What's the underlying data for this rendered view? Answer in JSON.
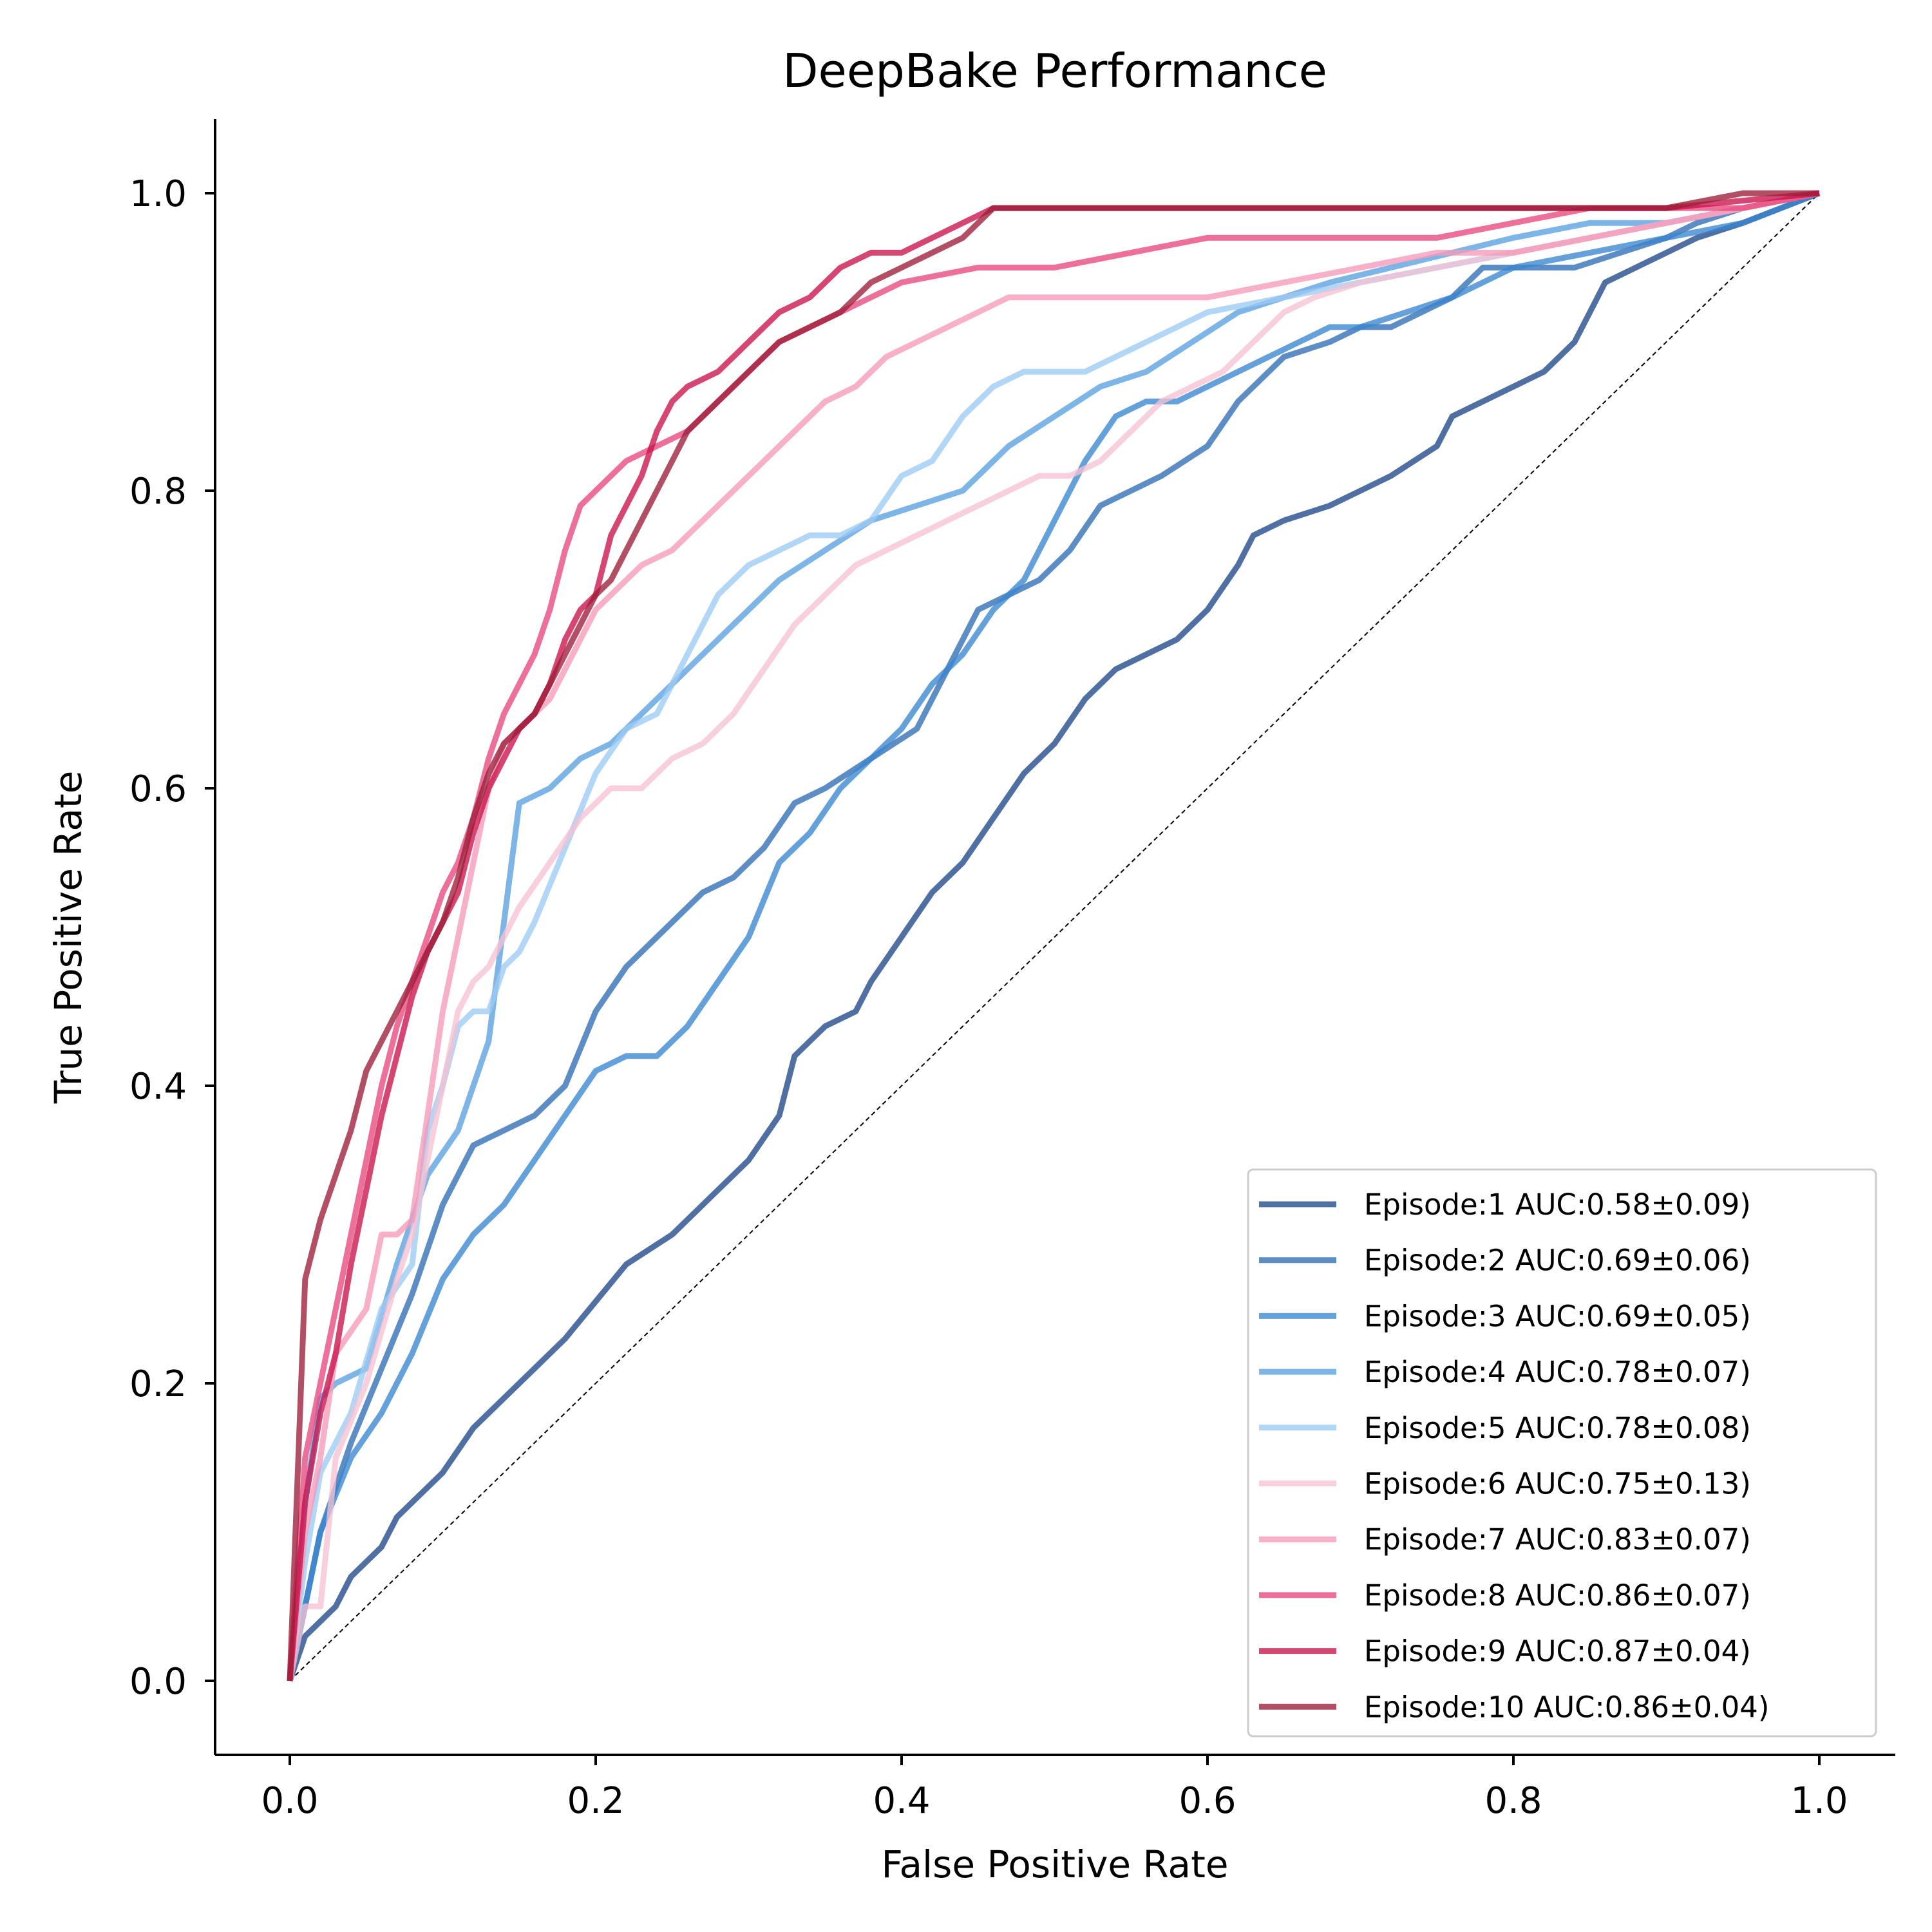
{
  "chart_data": {
    "type": "line",
    "title": "DeepBake Performance",
    "xlabel": "False Positive Rate",
    "ylabel": "True Positive Rate",
    "xlim": [
      -0.05,
      1.05
    ],
    "ylim": [
      -0.05,
      1.05
    ],
    "xticks": [
      "0.0",
      "0.2",
      "0.4",
      "0.6",
      "0.8",
      "1.0"
    ],
    "yticks": [
      "0.0",
      "0.2",
      "0.4",
      "0.6",
      "0.8",
      "1.0"
    ],
    "grid": false,
    "legend_position": "lower-right",
    "reference_line": {
      "x": [
        0,
        1
      ],
      "y": [
        0,
        1
      ],
      "style": "dashed",
      "color": "#000000"
    },
    "series": [
      {
        "name": "Episode:1 AUC:0.58±0.09)",
        "color": "#1f4788",
        "x": [
          0,
          0.01,
          0.02,
          0.03,
          0.04,
          0.05,
          0.06,
          0.07,
          0.08,
          0.09,
          0.1,
          0.12,
          0.15,
          0.18,
          0.22,
          0.25,
          0.28,
          0.3,
          0.32,
          0.33,
          0.35,
          0.37,
          0.38,
          0.4,
          0.42,
          0.44,
          0.46,
          0.48,
          0.5,
          0.52,
          0.54,
          0.56,
          0.58,
          0.6,
          0.62,
          0.63,
          0.65,
          0.68,
          0.7,
          0.72,
          0.75,
          0.76,
          0.78,
          0.8,
          0.82,
          0.83,
          0.84,
          0.85,
          0.86,
          0.88,
          0.9,
          0.92,
          0.95,
          1.0
        ],
        "y": [
          0,
          0.03,
          0.04,
          0.05,
          0.07,
          0.08,
          0.09,
          0.11,
          0.12,
          0.13,
          0.14,
          0.17,
          0.2,
          0.23,
          0.28,
          0.3,
          0.33,
          0.35,
          0.38,
          0.42,
          0.44,
          0.45,
          0.47,
          0.5,
          0.53,
          0.55,
          0.58,
          0.61,
          0.63,
          0.66,
          0.68,
          0.69,
          0.7,
          0.72,
          0.75,
          0.77,
          0.78,
          0.79,
          0.8,
          0.81,
          0.83,
          0.85,
          0.86,
          0.87,
          0.88,
          0.89,
          0.9,
          0.92,
          0.94,
          0.95,
          0.96,
          0.97,
          0.98,
          1.0
        ]
      },
      {
        "name": "Episode:2 AUC:0.69±0.06)",
        "color": "#2f6db5",
        "x": [
          0,
          0.02,
          0.04,
          0.06,
          0.08,
          0.1,
          0.12,
          0.14,
          0.16,
          0.18,
          0.2,
          0.22,
          0.25,
          0.27,
          0.29,
          0.31,
          0.33,
          0.35,
          0.38,
          0.41,
          0.43,
          0.45,
          0.47,
          0.49,
          0.51,
          0.53,
          0.55,
          0.57,
          0.6,
          0.62,
          0.63,
          0.65,
          0.68,
          0.7,
          0.72,
          0.74,
          0.76,
          0.78,
          0.82,
          0.84,
          0.87,
          0.9,
          0.92,
          0.95,
          1.0
        ],
        "y": [
          0,
          0.1,
          0.16,
          0.21,
          0.26,
          0.32,
          0.36,
          0.37,
          0.38,
          0.4,
          0.45,
          0.48,
          0.51,
          0.53,
          0.54,
          0.56,
          0.59,
          0.6,
          0.62,
          0.64,
          0.68,
          0.72,
          0.73,
          0.74,
          0.76,
          0.79,
          0.8,
          0.81,
          0.83,
          0.86,
          0.87,
          0.89,
          0.9,
          0.91,
          0.91,
          0.92,
          0.93,
          0.95,
          0.95,
          0.95,
          0.96,
          0.97,
          0.98,
          0.99,
          1.0
        ]
      },
      {
        "name": "Episode:3 AUC:0.69±0.05)",
        "color": "#3985cf",
        "x": [
          0,
          0.02,
          0.04,
          0.06,
          0.08,
          0.1,
          0.12,
          0.14,
          0.16,
          0.18,
          0.2,
          0.22,
          0.24,
          0.26,
          0.28,
          0.3,
          0.32,
          0.34,
          0.36,
          0.38,
          0.4,
          0.42,
          0.44,
          0.46,
          0.48,
          0.5,
          0.52,
          0.54,
          0.56,
          0.58,
          0.6,
          0.62,
          0.64,
          0.66,
          0.68,
          0.7,
          0.73,
          0.76,
          0.8,
          0.85,
          0.9,
          0.95,
          1.0
        ],
        "y": [
          0,
          0.1,
          0.15,
          0.18,
          0.22,
          0.27,
          0.3,
          0.32,
          0.35,
          0.38,
          0.41,
          0.42,
          0.42,
          0.44,
          0.47,
          0.5,
          0.55,
          0.57,
          0.6,
          0.62,
          0.64,
          0.67,
          0.69,
          0.72,
          0.74,
          0.78,
          0.82,
          0.85,
          0.86,
          0.86,
          0.87,
          0.88,
          0.89,
          0.9,
          0.91,
          0.91,
          0.92,
          0.93,
          0.95,
          0.96,
          0.97,
          0.98,
          1.0
        ]
      },
      {
        "name": "Episode:4 AUC:0.78±0.07)",
        "color": "#5aa0e0",
        "x": [
          0,
          0.01,
          0.02,
          0.03,
          0.05,
          0.07,
          0.09,
          0.11,
          0.13,
          0.15,
          0.17,
          0.19,
          0.21,
          0.23,
          0.26,
          0.29,
          0.32,
          0.35,
          0.38,
          0.41,
          0.44,
          0.47,
          0.5,
          0.53,
          0.56,
          0.59,
          0.62,
          0.65,
          0.68,
          0.72,
          0.76,
          0.8,
          0.85,
          0.9,
          0.95,
          1.0
        ],
        "y": [
          0,
          0.12,
          0.19,
          0.2,
          0.21,
          0.28,
          0.34,
          0.37,
          0.43,
          0.59,
          0.6,
          0.62,
          0.63,
          0.65,
          0.68,
          0.71,
          0.74,
          0.76,
          0.78,
          0.79,
          0.8,
          0.83,
          0.85,
          0.87,
          0.88,
          0.9,
          0.92,
          0.93,
          0.94,
          0.95,
          0.96,
          0.97,
          0.98,
          0.98,
          0.99,
          1.0
        ]
      },
      {
        "name": "Episode:5 AUC:0.78±0.08)",
        "color": "#9ccaf2",
        "x": [
          0,
          0.01,
          0.02,
          0.04,
          0.06,
          0.08,
          0.09,
          0.1,
          0.11,
          0.12,
          0.13,
          0.14,
          0.15,
          0.16,
          0.18,
          0.2,
          0.22,
          0.24,
          0.26,
          0.28,
          0.3,
          0.32,
          0.34,
          0.36,
          0.38,
          0.4,
          0.42,
          0.44,
          0.46,
          0.48,
          0.5,
          0.52,
          0.54,
          0.56,
          0.6,
          0.65,
          0.7,
          0.75,
          0.8,
          0.85,
          0.9,
          0.95,
          1.0
        ],
        "y": [
          0,
          0.08,
          0.14,
          0.18,
          0.25,
          0.28,
          0.37,
          0.4,
          0.44,
          0.45,
          0.45,
          0.48,
          0.49,
          0.51,
          0.56,
          0.61,
          0.64,
          0.65,
          0.69,
          0.73,
          0.75,
          0.76,
          0.77,
          0.77,
          0.78,
          0.81,
          0.82,
          0.85,
          0.87,
          0.88,
          0.88,
          0.88,
          0.89,
          0.9,
          0.92,
          0.93,
          0.94,
          0.95,
          0.96,
          0.97,
          0.98,
          0.99,
          1.0
        ]
      },
      {
        "name": "Episode:6 AUC:0.75±0.13)",
        "color": "#f5c2d3",
        "x": [
          0,
          0.01,
          0.02,
          0.03,
          0.05,
          0.07,
          0.08,
          0.09,
          0.1,
          0.11,
          0.12,
          0.13,
          0.14,
          0.15,
          0.17,
          0.19,
          0.21,
          0.23,
          0.25,
          0.27,
          0.29,
          0.31,
          0.33,
          0.35,
          0.37,
          0.39,
          0.41,
          0.43,
          0.45,
          0.47,
          0.49,
          0.51,
          0.53,
          0.55,
          0.57,
          0.59,
          0.61,
          0.63,
          0.65,
          0.67,
          0.7,
          0.75,
          0.8,
          0.85,
          0.9,
          0.95,
          1.0
        ],
        "y": [
          0,
          0.05,
          0.05,
          0.15,
          0.2,
          0.27,
          0.3,
          0.35,
          0.4,
          0.45,
          0.47,
          0.48,
          0.5,
          0.52,
          0.55,
          0.58,
          0.6,
          0.6,
          0.62,
          0.63,
          0.65,
          0.68,
          0.71,
          0.73,
          0.75,
          0.76,
          0.77,
          0.78,
          0.79,
          0.8,
          0.81,
          0.81,
          0.82,
          0.84,
          0.86,
          0.87,
          0.88,
          0.9,
          0.92,
          0.93,
          0.94,
          0.95,
          0.96,
          0.97,
          0.98,
          0.99,
          1.0
        ]
      },
      {
        "name": "Episode:7 AUC:0.83±0.07)",
        "color": "#f59ab8",
        "x": [
          0,
          0.01,
          0.02,
          0.03,
          0.05,
          0.06,
          0.07,
          0.08,
          0.09,
          0.1,
          0.11,
          0.12,
          0.13,
          0.14,
          0.15,
          0.16,
          0.17,
          0.18,
          0.19,
          0.2,
          0.21,
          0.22,
          0.23,
          0.25,
          0.27,
          0.29,
          0.31,
          0.33,
          0.35,
          0.37,
          0.39,
          0.41,
          0.43,
          0.45,
          0.47,
          0.5,
          0.55,
          0.6,
          0.65,
          0.7,
          0.75,
          0.8,
          0.85,
          0.9,
          0.95,
          1.0
        ],
        "y": [
          0,
          0.1,
          0.15,
          0.22,
          0.25,
          0.3,
          0.3,
          0.31,
          0.38,
          0.45,
          0.5,
          0.55,
          0.6,
          0.63,
          0.64,
          0.65,
          0.66,
          0.68,
          0.7,
          0.72,
          0.73,
          0.74,
          0.75,
          0.76,
          0.78,
          0.8,
          0.82,
          0.84,
          0.86,
          0.87,
          0.89,
          0.9,
          0.91,
          0.92,
          0.93,
          0.93,
          0.93,
          0.93,
          0.94,
          0.95,
          0.96,
          0.96,
          0.97,
          0.98,
          0.99,
          1.0
        ]
      },
      {
        "name": "Episode:8 AUC:0.86±0.07)",
        "color": "#e8487e",
        "x": [
          0,
          0.01,
          0.02,
          0.03,
          0.04,
          0.05,
          0.06,
          0.07,
          0.08,
          0.09,
          0.1,
          0.11,
          0.12,
          0.13,
          0.14,
          0.15,
          0.16,
          0.17,
          0.18,
          0.19,
          0.2,
          0.22,
          0.24,
          0.26,
          0.28,
          0.3,
          0.32,
          0.34,
          0.36,
          0.38,
          0.4,
          0.45,
          0.5,
          0.55,
          0.6,
          0.65,
          0.7,
          0.75,
          0.8,
          0.85,
          0.9,
          0.95,
          1.0
        ],
        "y": [
          0,
          0.15,
          0.2,
          0.25,
          0.3,
          0.35,
          0.4,
          0.44,
          0.47,
          0.5,
          0.53,
          0.55,
          0.58,
          0.62,
          0.65,
          0.67,
          0.69,
          0.72,
          0.76,
          0.79,
          0.8,
          0.82,
          0.83,
          0.84,
          0.86,
          0.88,
          0.9,
          0.91,
          0.92,
          0.93,
          0.94,
          0.95,
          0.95,
          0.96,
          0.97,
          0.97,
          0.97,
          0.97,
          0.98,
          0.99,
          0.99,
          0.99,
          1.0
        ]
      },
      {
        "name": "Episode:9 AUC:0.87±0.04)",
        "color": "#c9124a",
        "x": [
          0,
          0.01,
          0.02,
          0.03,
          0.04,
          0.05,
          0.06,
          0.07,
          0.08,
          0.09,
          0.1,
          0.11,
          0.12,
          0.13,
          0.14,
          0.15,
          0.16,
          0.17,
          0.18,
          0.19,
          0.2,
          0.21,
          0.22,
          0.23,
          0.24,
          0.25,
          0.26,
          0.28,
          0.3,
          0.32,
          0.34,
          0.36,
          0.38,
          0.4,
          0.42,
          0.44,
          0.46,
          0.5,
          0.6,
          0.7,
          0.8,
          0.9,
          1.0
        ],
        "y": [
          0,
          0.12,
          0.18,
          0.22,
          0.28,
          0.33,
          0.38,
          0.42,
          0.46,
          0.49,
          0.51,
          0.53,
          0.57,
          0.6,
          0.62,
          0.64,
          0.65,
          0.67,
          0.7,
          0.72,
          0.73,
          0.77,
          0.79,
          0.81,
          0.84,
          0.86,
          0.87,
          0.88,
          0.9,
          0.92,
          0.93,
          0.95,
          0.96,
          0.96,
          0.97,
          0.98,
          0.99,
          0.99,
          0.99,
          0.99,
          0.99,
          0.99,
          1.0
        ]
      },
      {
        "name": "Episode:10 AUC:0.86±0.04)",
        "color": "#9c1d38",
        "x": [
          0,
          0.01,
          0.02,
          0.03,
          0.04,
          0.05,
          0.06,
          0.07,
          0.08,
          0.09,
          0.1,
          0.11,
          0.12,
          0.13,
          0.14,
          0.15,
          0.16,
          0.17,
          0.18,
          0.19,
          0.2,
          0.21,
          0.22,
          0.23,
          0.24,
          0.25,
          0.26,
          0.28,
          0.3,
          0.32,
          0.34,
          0.36,
          0.38,
          0.4,
          0.42,
          0.44,
          0.46,
          0.5,
          0.6,
          0.7,
          0.8,
          0.9,
          0.95,
          1.0
        ],
        "y": [
          0,
          0.27,
          0.31,
          0.34,
          0.37,
          0.41,
          0.43,
          0.45,
          0.47,
          0.49,
          0.51,
          0.54,
          0.58,
          0.61,
          0.63,
          0.64,
          0.65,
          0.67,
          0.69,
          0.71,
          0.73,
          0.74,
          0.76,
          0.78,
          0.8,
          0.82,
          0.84,
          0.86,
          0.88,
          0.9,
          0.91,
          0.92,
          0.94,
          0.95,
          0.96,
          0.97,
          0.99,
          0.99,
          0.99,
          0.99,
          0.99,
          0.99,
          1.0,
          1.0
        ]
      }
    ]
  }
}
